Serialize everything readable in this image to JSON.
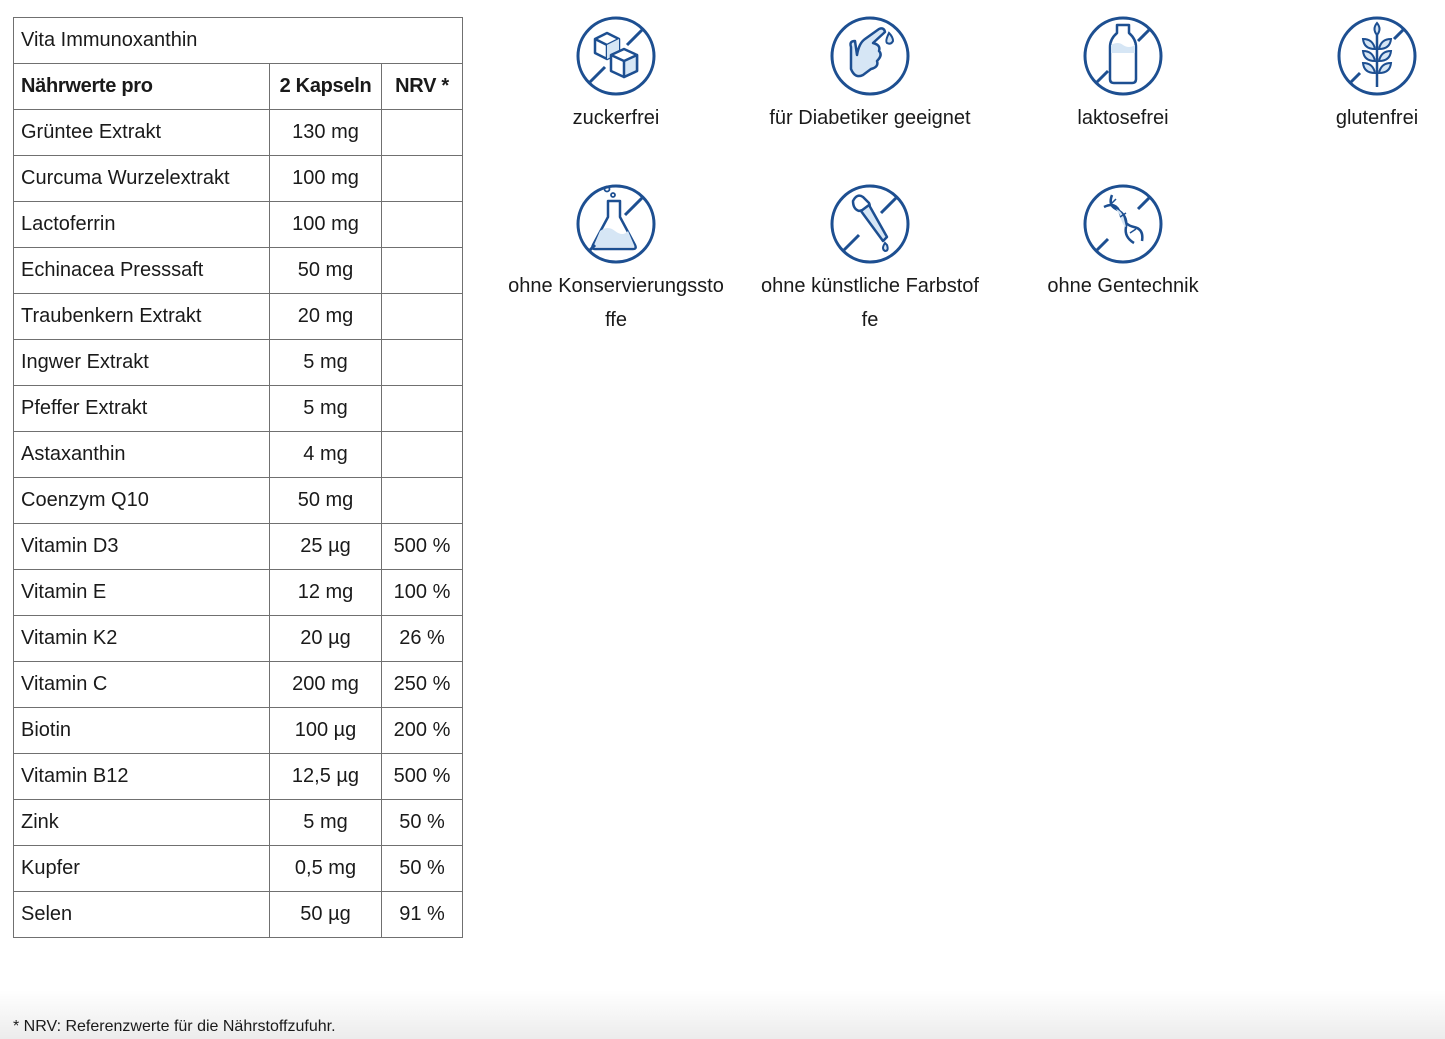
{
  "table": {
    "title": "Vita Immunoxanthin",
    "header": [
      "Nährwerte pro",
      "2 Kapseln",
      "NRV *"
    ],
    "rows": [
      [
        "Grüntee Extrakt",
        "130 mg",
        ""
      ],
      [
        "Curcuma Wurzelextrakt",
        "100 mg",
        ""
      ],
      [
        "Lactoferrin",
        "100 mg",
        ""
      ],
      [
        "Echinacea Presssaft",
        "50 mg",
        ""
      ],
      [
        "Traubenkern Extrakt",
        "20 mg",
        ""
      ],
      [
        "Ingwer Extrakt",
        "5 mg",
        ""
      ],
      [
        "Pfeffer Extrakt",
        "5 mg",
        ""
      ],
      [
        "Astaxanthin",
        "4 mg",
        ""
      ],
      [
        "Coenzym Q10",
        "50 mg",
        ""
      ],
      [
        "Vitamin D3",
        "25 µg",
        "500 %"
      ],
      [
        "Vitamin E",
        "12 mg",
        "100 %"
      ],
      [
        "Vitamin K2",
        "20 µg",
        "26 %"
      ],
      [
        "Vitamin C",
        "200 mg",
        "250 %"
      ],
      [
        "Biotin",
        "100 µg",
        "200 %"
      ],
      [
        "Vitamin B12",
        "12,5 µg",
        "500 %"
      ],
      [
        "Zink",
        "5 mg",
        "50 %"
      ],
      [
        "Kupfer",
        "0,5 mg",
        "50 %"
      ],
      [
        "Selen",
        "50 µg",
        "91 %"
      ]
    ]
  },
  "features": [
    {
      "icon": "no-sugar-icon",
      "label": "zuckerfrei"
    },
    {
      "icon": "diabetic-finger-icon",
      "label": "für Diabetiker geeignet"
    },
    {
      "icon": "no-lactose-icon",
      "label": "laktosefrei"
    },
    {
      "icon": "no-gluten-icon",
      "label": "glutenfrei"
    },
    {
      "icon": "no-preservatives-icon",
      "label": "ohne Konservierungsstoffe"
    },
    {
      "icon": "no-artificial-colors-icon",
      "label": "ohne künstliche Farbstoffe"
    },
    {
      "icon": "no-gmo-icon",
      "label": "ohne Gentechnik"
    }
  ],
  "colors": {
    "icon_stroke": "#1d4f91",
    "icon_fill": "#d6e6f5",
    "table_border": "#707070",
    "text": "#1a1a1a"
  },
  "footer": {
    "note": "* NRV: Referenzwerte für die Nährstoffzufuhr."
  }
}
